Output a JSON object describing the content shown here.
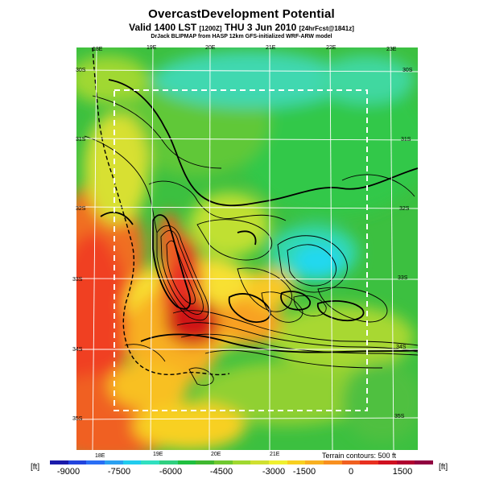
{
  "header": {
    "title": "OvercastDevelopment Potential",
    "valid_main": "Valid 1400 LST",
    "valid_code": "[1200Z]",
    "valid_date": "THU 3 Jun 2010",
    "valid_fcst": "[24hrFcst@1841z]",
    "credit": "DrJack BLIPMAP from HASP 12km GFS-initialized WRF-ARW model"
  },
  "map": {
    "lon_labels_top": [
      "18E",
      "19E",
      "20E",
      "21E",
      "22E",
      "23E"
    ],
    "lon_labels_bottom": [
      "18E",
      "19E",
      "20E",
      "21E"
    ],
    "lat_labels_left": [
      "30S",
      "31S",
      "32S",
      "33S",
      "34S",
      "35S"
    ],
    "lat_labels_right": [
      "30S",
      "31S",
      "32S",
      "33S",
      "34S",
      "35S"
    ],
    "terrain_note": "Terrain contours: 500 ft"
  },
  "colorbar": {
    "unit_left": "[ft]",
    "unit_right": "[ft]",
    "tick_labels": [
      "-9000",
      "-7500",
      "-6000",
      "-4500",
      "-3000",
      "-1500",
      "0",
      "1500"
    ],
    "colors": [
      "#1a1aaa",
      "#2244dd",
      "#2a6ef5",
      "#2aa0f0",
      "#20ccee",
      "#30e0c0",
      "#30d080",
      "#20c040",
      "#40b830",
      "#70c830",
      "#a0d830",
      "#d0e030",
      "#f0f030",
      "#f8d020",
      "#f8b020",
      "#f89020",
      "#f06020",
      "#e83020",
      "#d01020",
      "#b00030",
      "#900040"
    ]
  }
}
